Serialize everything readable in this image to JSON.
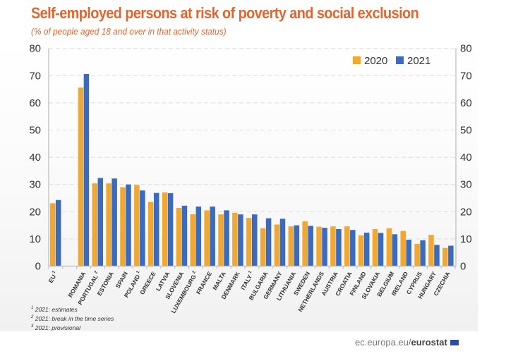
{
  "title": "Self-employed persons at risk of poverty and social exclusion",
  "subtitle": "(% of people aged 18 and over in that activity status)",
  "footnotes": [
    {
      "mark": "1",
      "text": "2021: estimates"
    },
    {
      "mark": "2",
      "text": "2021: break in the time series"
    },
    {
      "mark": "3",
      "text": "2021: provisional"
    }
  ],
  "source": {
    "prefix": "ec.europa.eu/",
    "bold": "eurostat",
    "icon": "eu-flag-icon"
  },
  "colors": {
    "2020": "#f0a830",
    "2021": "#3a6bc0",
    "title": "#e0662f",
    "grid": "#dddddd",
    "axis": "#bbbbbb"
  },
  "chart_data": {
    "type": "bar",
    "title": "Self-employed persons at risk of poverty and social exclusion",
    "subtitle": "(% of people aged 18 and over in that activity status)",
    "xlabel": "",
    "ylabel": "",
    "ylim": [
      0,
      80
    ],
    "yticks": [
      0,
      10,
      20,
      30,
      40,
      50,
      60,
      70,
      80
    ],
    "grid": true,
    "legend_position": "top-right",
    "dual_y_axis_labels": true,
    "categories": [
      "EU",
      "Romania",
      "Portugal",
      "Estonia",
      "Spain",
      "Poland",
      "Greece",
      "Latvia",
      "Slovenia",
      "Luxembourg",
      "France",
      "Malta",
      "Denmark",
      "Italy",
      "Bulgaria",
      "Germany",
      "Lithuania",
      "Sweden",
      "Netherlands",
      "Austria",
      "Croatia",
      "Finland",
      "Slovakia",
      "Belgium",
      "Ireland",
      "Cyprus",
      "Hungary",
      "Czechia"
    ],
    "category_marks": [
      "1",
      "",
      "2",
      "",
      "",
      "1",
      "",
      "",
      "",
      "2",
      "",
      "",
      "",
      "1",
      "",
      "",
      "",
      "",
      "",
      "",
      "",
      "",
      "",
      "",
      "",
      "",
      "",
      ""
    ],
    "gap_after_first": true,
    "series": [
      {
        "name": "2020",
        "values": [
          23.1,
          65.6,
          30.4,
          30.4,
          29.0,
          29.8,
          23.6,
          27.1,
          21.4,
          19.1,
          20.5,
          19.0,
          19.6,
          17.7,
          13.9,
          15.3,
          14.6,
          16.5,
          14.5,
          14.6,
          14.6,
          11.3,
          13.6,
          13.9,
          12.9,
          8.2,
          11.5,
          6.7
        ]
      },
      {
        "name": "2021",
        "values": [
          24.3,
          70.6,
          32.4,
          32.2,
          30.0,
          27.8,
          26.9,
          26.8,
          22.2,
          21.9,
          21.9,
          20.5,
          19.0,
          19.0,
          17.6,
          17.4,
          15.0,
          14.8,
          14.1,
          13.6,
          13.3,
          12.3,
          12.2,
          11.7,
          9.7,
          9.5,
          7.8,
          7.5
        ]
      }
    ]
  }
}
